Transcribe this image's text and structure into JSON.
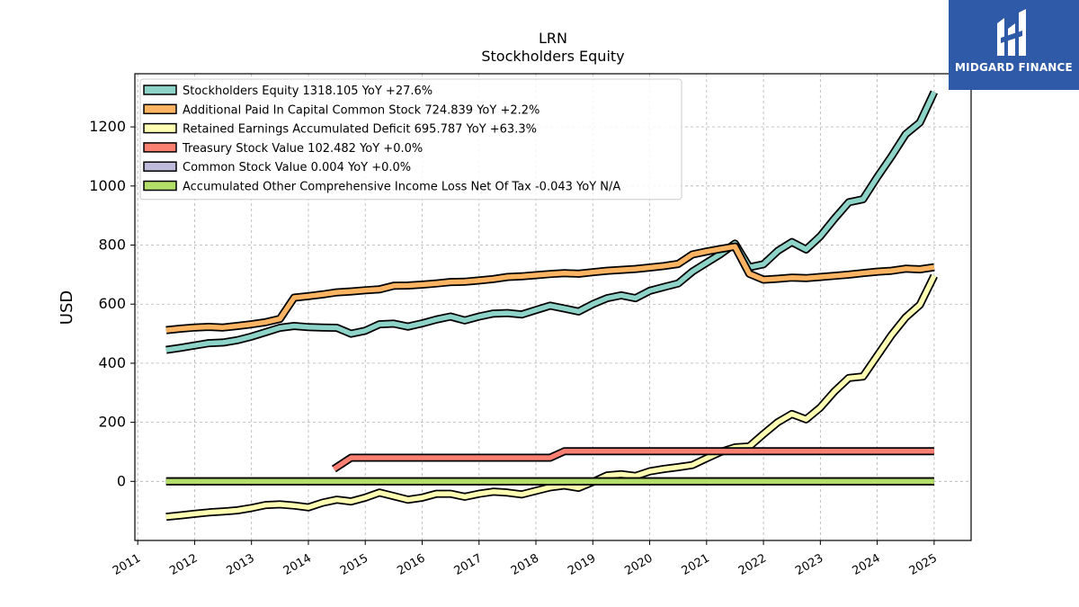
{
  "logo": {
    "text": "MIDGARD FINANCE",
    "background": "#2f5aa8"
  },
  "chart_data": {
    "type": "line",
    "title": "LRN",
    "subtitle": "Stockholders  Equity",
    "ylabel": "USD",
    "xlabel": "",
    "xlim": [
      2010.95,
      2025.65
    ],
    "ylim": [
      -200,
      1380
    ],
    "x_ticks": [
      "2011",
      "2012",
      "2013",
      "2014",
      "2015",
      "2016",
      "2017",
      "2018",
      "2019",
      "2020",
      "2021",
      "2022",
      "2023",
      "2024",
      "2025"
    ],
    "y_ticks": [
      0,
      200,
      400,
      600,
      800,
      1000,
      1200
    ],
    "grid": true,
    "legend_position": "top-left",
    "series": [
      {
        "name": "Stockholders Equity  1318.105 YoY +27.6%",
        "color": "#8dd3c7",
        "points": [
          [
            2011.5,
            445
          ],
          [
            2011.75,
            452
          ],
          [
            2012.0,
            460
          ],
          [
            2012.25,
            468
          ],
          [
            2012.5,
            470
          ],
          [
            2012.75,
            478
          ],
          [
            2013.0,
            490
          ],
          [
            2013.25,
            505
          ],
          [
            2013.5,
            520
          ],
          [
            2013.75,
            526
          ],
          [
            2014.0,
            522
          ],
          [
            2014.25,
            521
          ],
          [
            2014.5,
            520
          ],
          [
            2014.75,
            500
          ],
          [
            2015.0,
            510
          ],
          [
            2015.25,
            532
          ],
          [
            2015.5,
            534
          ],
          [
            2015.75,
            524
          ],
          [
            2016.0,
            535
          ],
          [
            2016.25,
            548
          ],
          [
            2016.5,
            558
          ],
          [
            2016.75,
            545
          ],
          [
            2017.0,
            558
          ],
          [
            2017.25,
            568
          ],
          [
            2017.5,
            570
          ],
          [
            2017.75,
            565
          ],
          [
            2018.0,
            580
          ],
          [
            2018.25,
            595
          ],
          [
            2018.5,
            585
          ],
          [
            2018.75,
            575
          ],
          [
            2019.0,
            600
          ],
          [
            2019.25,
            620
          ],
          [
            2019.5,
            630
          ],
          [
            2019.75,
            620
          ],
          [
            2020.0,
            645
          ],
          [
            2020.25,
            658
          ],
          [
            2020.5,
            670
          ],
          [
            2020.75,
            710
          ],
          [
            2021.0,
            740
          ],
          [
            2021.25,
            770
          ],
          [
            2021.5,
            805
          ],
          [
            2021.75,
            725
          ],
          [
            2022.0,
            735
          ],
          [
            2022.25,
            780
          ],
          [
            2022.5,
            810
          ],
          [
            2022.75,
            785
          ],
          [
            2023.0,
            830
          ],
          [
            2023.25,
            890
          ],
          [
            2023.5,
            945
          ],
          [
            2023.75,
            955
          ],
          [
            2024.0,
            1030
          ],
          [
            2024.25,
            1100
          ],
          [
            2024.5,
            1175
          ],
          [
            2024.75,
            1215
          ],
          [
            2025.0,
            1318
          ]
        ]
      },
      {
        "name": "Additional Paid In Capital Common Stock  724.839 YoY +2.2%",
        "color": "#fdb462",
        "points": [
          [
            2011.5,
            512
          ],
          [
            2011.75,
            517
          ],
          [
            2012.0,
            521
          ],
          [
            2012.25,
            523
          ],
          [
            2012.5,
            521
          ],
          [
            2012.75,
            526
          ],
          [
            2013.0,
            532
          ],
          [
            2013.25,
            539
          ],
          [
            2013.5,
            550
          ],
          [
            2013.75,
            622
          ],
          [
            2014.0,
            627
          ],
          [
            2014.25,
            633
          ],
          [
            2014.5,
            640
          ],
          [
            2014.75,
            643
          ],
          [
            2015.0,
            647
          ],
          [
            2015.25,
            650
          ],
          [
            2015.5,
            662
          ],
          [
            2015.75,
            663
          ],
          [
            2016.0,
            666
          ],
          [
            2016.25,
            670
          ],
          [
            2016.5,
            675
          ],
          [
            2016.75,
            676
          ],
          [
            2017.0,
            680
          ],
          [
            2017.25,
            685
          ],
          [
            2017.5,
            692
          ],
          [
            2017.75,
            694
          ],
          [
            2018.0,
            698
          ],
          [
            2018.25,
            702
          ],
          [
            2018.5,
            705
          ],
          [
            2018.75,
            703
          ],
          [
            2019.0,
            708
          ],
          [
            2019.25,
            713
          ],
          [
            2019.5,
            716
          ],
          [
            2019.75,
            719
          ],
          [
            2020.0,
            724
          ],
          [
            2020.25,
            729
          ],
          [
            2020.5,
            736
          ],
          [
            2020.75,
            768
          ],
          [
            2021.0,
            778
          ],
          [
            2021.25,
            787
          ],
          [
            2021.5,
            795
          ],
          [
            2021.75,
            703
          ],
          [
            2022.0,
            683
          ],
          [
            2022.25,
            686
          ],
          [
            2022.5,
            690
          ],
          [
            2022.75,
            688
          ],
          [
            2023.0,
            692
          ],
          [
            2023.25,
            696
          ],
          [
            2023.5,
            700
          ],
          [
            2023.75,
            705
          ],
          [
            2024.0,
            710
          ],
          [
            2024.25,
            713
          ],
          [
            2024.5,
            720
          ],
          [
            2024.75,
            718
          ],
          [
            2025.0,
            725
          ]
        ]
      },
      {
        "name": "Retained Earnings Accumulated Deficit  695.787 YoY +63.3%",
        "color": "#ffffb3",
        "points": [
          [
            2011.5,
            -120
          ],
          [
            2011.75,
            -115
          ],
          [
            2012.0,
            -110
          ],
          [
            2012.25,
            -105
          ],
          [
            2012.5,
            -102
          ],
          [
            2012.75,
            -98
          ],
          [
            2013.0,
            -90
          ],
          [
            2013.25,
            -80
          ],
          [
            2013.5,
            -78
          ],
          [
            2013.75,
            -82
          ],
          [
            2014.0,
            -88
          ],
          [
            2014.25,
            -72
          ],
          [
            2014.5,
            -62
          ],
          [
            2014.75,
            -68
          ],
          [
            2015.0,
            -55
          ],
          [
            2015.25,
            -38
          ],
          [
            2015.5,
            -50
          ],
          [
            2015.75,
            -62
          ],
          [
            2016.0,
            -55
          ],
          [
            2016.25,
            -42
          ],
          [
            2016.5,
            -42
          ],
          [
            2016.75,
            -52
          ],
          [
            2017.0,
            -42
          ],
          [
            2017.25,
            -35
          ],
          [
            2017.5,
            -38
          ],
          [
            2017.75,
            -44
          ],
          [
            2018.0,
            -32
          ],
          [
            2018.25,
            -20
          ],
          [
            2018.5,
            -14
          ],
          [
            2018.75,
            -22
          ],
          [
            2019.0,
            -2
          ],
          [
            2019.25,
            20
          ],
          [
            2019.5,
            24
          ],
          [
            2019.75,
            18
          ],
          [
            2020.0,
            34
          ],
          [
            2020.25,
            42
          ],
          [
            2020.5,
            48
          ],
          [
            2020.75,
            55
          ],
          [
            2021.0,
            78
          ],
          [
            2021.25,
            100
          ],
          [
            2021.5,
            115
          ],
          [
            2021.75,
            118
          ],
          [
            2022.0,
            160
          ],
          [
            2022.25,
            200
          ],
          [
            2022.5,
            228
          ],
          [
            2022.75,
            210
          ],
          [
            2023.0,
            250
          ],
          [
            2023.25,
            305
          ],
          [
            2023.5,
            350
          ],
          [
            2023.75,
            355
          ],
          [
            2024.0,
            425
          ],
          [
            2024.25,
            495
          ],
          [
            2024.5,
            555
          ],
          [
            2024.75,
            598
          ],
          [
            2025.0,
            696
          ]
        ]
      },
      {
        "name": "Treasury Stock Value  102.482 YoY +0.0%",
        "color": "#fb8072",
        "points": [
          [
            2014.45,
            42
          ],
          [
            2014.75,
            80
          ],
          [
            2015.0,
            80
          ],
          [
            2016.0,
            80
          ],
          [
            2017.0,
            80
          ],
          [
            2018.0,
            80
          ],
          [
            2018.25,
            80
          ],
          [
            2018.5,
            102
          ],
          [
            2019.0,
            102
          ],
          [
            2020.0,
            102
          ],
          [
            2021.0,
            102
          ],
          [
            2022.0,
            102
          ],
          [
            2023.0,
            102
          ],
          [
            2024.0,
            102
          ],
          [
            2025.0,
            102
          ]
        ]
      },
      {
        "name": "Common Stock Value  0.004 YoY +0.0%",
        "color": "#bebada",
        "points": [
          [
            2011.5,
            0
          ],
          [
            2025.0,
            0
          ]
        ]
      },
      {
        "name": "Accumulated Other Comprehensive Income Loss Net Of Tax  -0.043 YoY N/A",
        "color": "#b3de69",
        "points": [
          [
            2011.5,
            0
          ],
          [
            2025.0,
            0
          ]
        ]
      }
    ]
  }
}
